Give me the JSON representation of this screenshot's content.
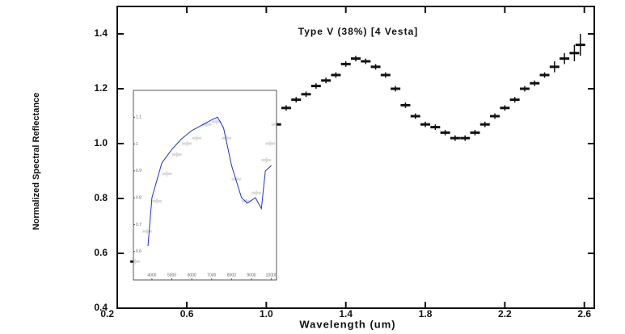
{
  "chart_data": [
    {
      "type": "scatter",
      "title": "Type V (38%) [4 Vesta]",
      "x_label": "Wavelength (um)",
      "y_label": "Normalized Spectral Reflectance",
      "x": [
        0.34,
        0.4,
        0.45,
        0.5,
        0.55,
        0.6,
        0.65,
        0.7,
        0.75,
        0.8,
        0.85,
        0.9,
        0.95,
        1.0,
        1.02,
        1.05,
        1.1,
        1.15,
        1.2,
        1.25,
        1.3,
        1.35,
        1.4,
        1.45,
        1.5,
        1.55,
        1.6,
        1.65,
        1.7,
        1.75,
        1.8,
        1.85,
        1.9,
        1.95,
        2.0,
        2.05,
        2.1,
        2.15,
        2.2,
        2.25,
        2.3,
        2.35,
        2.4,
        2.45,
        2.5,
        2.55,
        2.58
      ],
      "values": [
        0.57,
        0.68,
        0.79,
        0.89,
        0.96,
        1.0,
        1.02,
        1.07,
        1.08,
        1.02,
        0.87,
        0.79,
        0.82,
        0.94,
        1.0,
        1.07,
        1.13,
        1.16,
        1.18,
        1.21,
        1.23,
        1.25,
        1.29,
        1.31,
        1.3,
        1.28,
        1.25,
        1.2,
        1.14,
        1.1,
        1.07,
        1.06,
        1.04,
        1.02,
        1.02,
        1.04,
        1.07,
        1.1,
        1.13,
        1.16,
        1.2,
        1.22,
        1.25,
        1.28,
        1.31,
        1.33,
        1.36
      ],
      "errors": [
        0.01,
        0.01,
        0.01,
        0.01,
        0.01,
        0.01,
        0.01,
        0.01,
        0.01,
        0.01,
        0.01,
        0.01,
        0.01,
        0.01,
        0.01,
        0.01,
        0.01,
        0.01,
        0.01,
        0.01,
        0.01,
        0.01,
        0.01,
        0.01,
        0.01,
        0.01,
        0.01,
        0.01,
        0.01,
        0.01,
        0.01,
        0.01,
        0.01,
        0.01,
        0.01,
        0.01,
        0.01,
        0.01,
        0.01,
        0.01,
        0.01,
        0.01,
        0.01,
        0.02,
        0.02,
        0.03,
        0.04
      ],
      "color": "#111111",
      "xlim": [
        0.25,
        2.65
      ],
      "ylim": [
        0.4,
        1.5
      ],
      "xticks": [
        0.2,
        0.6,
        {
          "value": 1,
          "label": "1.0"
        },
        1.4,
        1.8,
        2.2,
        2.6
      ],
      "yticks": [
        0.4,
        0.6,
        0.8,
        {
          "value": 1,
          "label": "1.0"
        },
        1.2,
        1.4
      ]
    },
    {
      "type": "line",
      "x": [
        3800,
        4000,
        4500,
        5000,
        5500,
        6000,
        6500,
        7000,
        7300,
        7600,
        8000,
        8500,
        8800,
        9200,
        9500,
        9700,
        10000
      ],
      "values": [
        0.62,
        0.8,
        0.93,
        0.98,
        1.02,
        1.05,
        1.07,
        1.09,
        1.1,
        1.06,
        0.92,
        0.8,
        0.78,
        0.8,
        0.76,
        0.9,
        0.92
      ],
      "color": "#2233cc",
      "xlim": [
        3070,
        10260
      ],
      "ylim": [
        0.494,
        1.2
      ],
      "xticks": [
        4000,
        5000,
        6000,
        7000,
        8000,
        9000,
        10000
      ],
      "yticks": [
        0.6,
        0.7,
        0.8,
        0.9,
        1,
        1.1
      ]
    }
  ]
}
